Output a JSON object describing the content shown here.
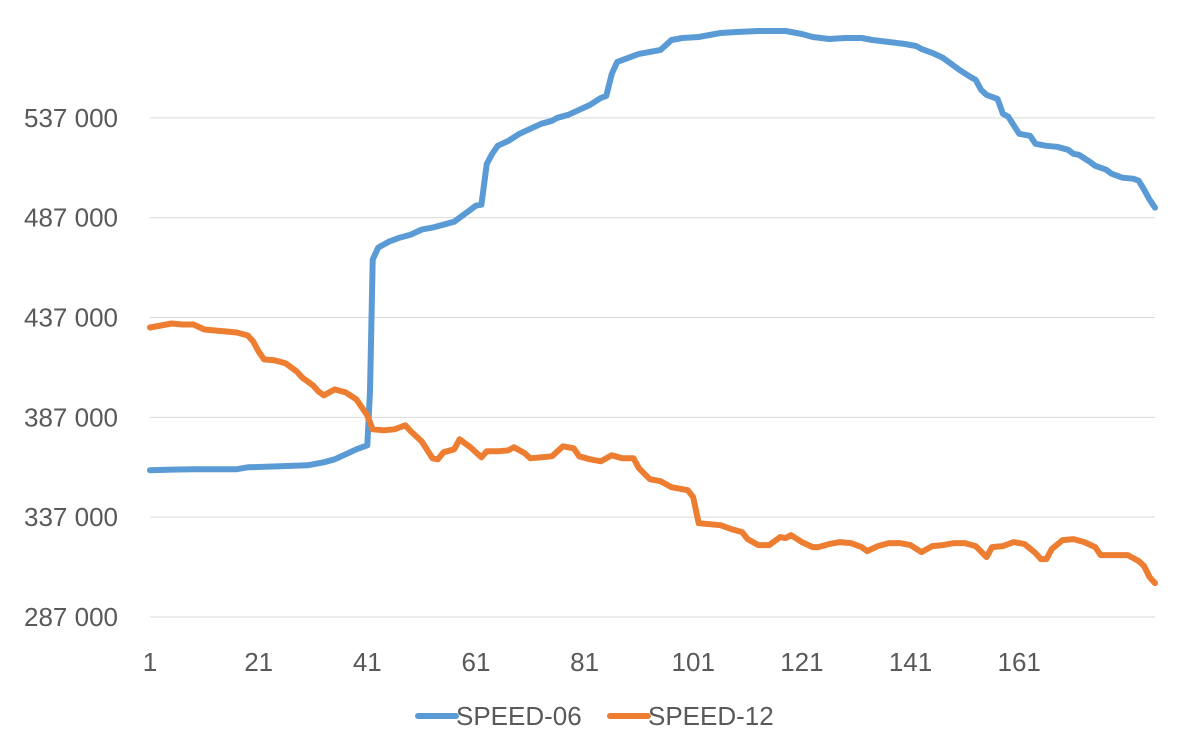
{
  "chart_data": {
    "type": "line",
    "title": "",
    "xlabel": "",
    "ylabel": "",
    "xlim": [
      1,
      180
    ],
    "ylim": [
      287000,
      587000
    ],
    "y_ticks": [
      {
        "value": 287000,
        "label": "287 000"
      },
      {
        "value": 337000,
        "label": "337 000"
      },
      {
        "value": 387000,
        "label": "387 000"
      },
      {
        "value": 437000,
        "label": "437 000"
      },
      {
        "value": 487000,
        "label": "487 000"
      },
      {
        "value": 537000,
        "label": "537 000"
      }
    ],
    "x_ticks": [
      {
        "value": 1,
        "label": "1"
      },
      {
        "value": 21,
        "label": "21"
      },
      {
        "value": 41,
        "label": "41"
      },
      {
        "value": 61,
        "label": "61"
      },
      {
        "value": 81,
        "label": "81"
      },
      {
        "value": 101,
        "label": "101"
      },
      {
        "value": 121,
        "label": "121"
      },
      {
        "value": 141,
        "label": "141"
      },
      {
        "value": 161,
        "label": "161"
      }
    ],
    "grid": true,
    "legend": "bottom",
    "series": [
      {
        "name": "SPEED-06",
        "color": "#5b9bd5",
        "points": [
          [
            1,
            360500
          ],
          [
            5,
            360800
          ],
          [
            9,
            361000
          ],
          [
            13,
            361000
          ],
          [
            17,
            361000
          ],
          [
            19,
            362000
          ],
          [
            25,
            362500
          ],
          [
            30,
            363000
          ],
          [
            33,
            364500
          ],
          [
            35,
            366000
          ],
          [
            37,
            368500
          ],
          [
            39,
            371000
          ],
          [
            41,
            373000
          ],
          [
            41.5,
            400000
          ],
          [
            42,
            466000
          ],
          [
            43,
            472000
          ],
          [
            45,
            475000
          ],
          [
            47,
            477000
          ],
          [
            49,
            478500
          ],
          [
            51,
            481000
          ],
          [
            53,
            482000
          ],
          [
            55,
            483500
          ],
          [
            57,
            485000
          ],
          [
            59,
            489000
          ],
          [
            61,
            493000
          ],
          [
            62,
            493500
          ],
          [
            63,
            514000
          ],
          [
            64,
            519000
          ],
          [
            65,
            523000
          ],
          [
            67,
            525500
          ],
          [
            69,
            529000
          ],
          [
            71,
            531500
          ],
          [
            73,
            534000
          ],
          [
            75,
            535500
          ],
          [
            76,
            537000
          ],
          [
            78,
            538500
          ],
          [
            80,
            541000
          ],
          [
            82,
            543500
          ],
          [
            84,
            547000
          ],
          [
            85,
            548000
          ],
          [
            86,
            559000
          ],
          [
            87,
            565000
          ],
          [
            89,
            567000
          ],
          [
            91,
            569000
          ],
          [
            93,
            570000
          ],
          [
            95,
            571000
          ],
          [
            97,
            576000
          ],
          [
            99,
            577000
          ],
          [
            102,
            577500
          ],
          [
            104,
            578500
          ],
          [
            106,
            579500
          ],
          [
            109,
            580000
          ],
          [
            113,
            580500
          ],
          [
            118,
            580500
          ],
          [
            121,
            579000
          ],
          [
            123,
            577500
          ],
          [
            126,
            576500
          ],
          [
            129,
            577000
          ],
          [
            132,
            577000
          ],
          [
            134,
            576000
          ],
          [
            137,
            575000
          ],
          [
            140,
            574000
          ],
          [
            142,
            573000
          ],
          [
            143,
            571500
          ],
          [
            145,
            569500
          ],
          [
            147,
            567000
          ],
          [
            148,
            565000
          ],
          [
            150,
            561000
          ],
          [
            152,
            557500
          ],
          [
            153,
            556000
          ],
          [
            154,
            551000
          ],
          [
            155,
            548500
          ],
          [
            157,
            546500
          ],
          [
            158,
            539000
          ],
          [
            159,
            537500
          ],
          [
            161,
            529000
          ],
          [
            163,
            528000
          ],
          [
            164,
            524000
          ],
          [
            166,
            523000
          ],
          [
            168,
            522500
          ],
          [
            170,
            521000
          ],
          [
            171,
            519000
          ],
          [
            172,
            518500
          ],
          [
            174,
            515000
          ],
          [
            175,
            513000
          ],
          [
            177,
            511000
          ],
          [
            178,
            509000
          ],
          [
            180,
            507000
          ],
          [
            182,
            506500
          ],
          [
            183,
            505500
          ],
          [
            184,
            501000
          ],
          [
            185,
            496000
          ],
          [
            186,
            492000
          ]
        ]
      },
      {
        "name": "SPEED-12",
        "color": "#ed7d31",
        "points": [
          [
            1,
            432000
          ],
          [
            3,
            433000
          ],
          [
            5,
            434000
          ],
          [
            7,
            433500
          ],
          [
            9,
            433500
          ],
          [
            11,
            431000
          ],
          [
            13,
            430500
          ],
          [
            15,
            430000
          ],
          [
            17,
            429500
          ],
          [
            19,
            428000
          ],
          [
            20,
            425000
          ],
          [
            21,
            420000
          ],
          [
            22,
            416000
          ],
          [
            24,
            415500
          ],
          [
            26,
            414000
          ],
          [
            28,
            410000
          ],
          [
            29,
            407000
          ],
          [
            31,
            403000
          ],
          [
            32,
            400000
          ],
          [
            33,
            398000
          ],
          [
            35,
            401000
          ],
          [
            37,
            399500
          ],
          [
            39,
            396000
          ],
          [
            41,
            388000
          ],
          [
            42,
            381000
          ],
          [
            44,
            380500
          ],
          [
            46,
            381000
          ],
          [
            48,
            383000
          ],
          [
            49,
            380000
          ],
          [
            51,
            375000
          ],
          [
            53,
            366500
          ],
          [
            54,
            366000
          ],
          [
            55,
            369500
          ],
          [
            57,
            371000
          ],
          [
            58,
            376000
          ],
          [
            60,
            372000
          ],
          [
            61,
            369500
          ],
          [
            62,
            367000
          ],
          [
            63,
            370000
          ],
          [
            65,
            370000
          ],
          [
            67,
            370500
          ],
          [
            68,
            372000
          ],
          [
            70,
            369000
          ],
          [
            71,
            366500
          ],
          [
            73,
            367000
          ],
          [
            75,
            367500
          ],
          [
            77,
            372500
          ],
          [
            79,
            371500
          ],
          [
            80,
            367500
          ],
          [
            82,
            366000
          ],
          [
            84,
            365000
          ],
          [
            86,
            368000
          ],
          [
            88,
            366500
          ],
          [
            90,
            366500
          ],
          [
            91,
            361500
          ],
          [
            93,
            356000
          ],
          [
            95,
            355000
          ],
          [
            97,
            352000
          ],
          [
            99,
            351000
          ],
          [
            100,
            350500
          ],
          [
            101,
            347000
          ],
          [
            102,
            334000
          ],
          [
            104,
            333500
          ],
          [
            106,
            333000
          ],
          [
            108,
            331000
          ],
          [
            110,
            329500
          ],
          [
            111,
            326000
          ],
          [
            113,
            323000
          ],
          [
            115,
            323000
          ],
          [
            117,
            327000
          ],
          [
            118,
            326500
          ],
          [
            119,
            328000
          ],
          [
            121,
            324500
          ],
          [
            123,
            322000
          ],
          [
            124,
            322000
          ],
          [
            126,
            323500
          ],
          [
            128,
            324500
          ],
          [
            130,
            324000
          ],
          [
            132,
            322000
          ],
          [
            133,
            320000
          ],
          [
            135,
            322500
          ],
          [
            137,
            324000
          ],
          [
            139,
            324000
          ],
          [
            141,
            323000
          ],
          [
            143,
            319500
          ],
          [
            145,
            322500
          ],
          [
            147,
            323000
          ],
          [
            149,
            324000
          ],
          [
            151,
            324000
          ],
          [
            153,
            322500
          ],
          [
            155,
            317000
          ],
          [
            156,
            322000
          ],
          [
            158,
            322500
          ],
          [
            160,
            324500
          ],
          [
            162,
            323500
          ],
          [
            164,
            319000
          ],
          [
            165,
            316000
          ],
          [
            166,
            316000
          ],
          [
            167,
            321000
          ],
          [
            169,
            325500
          ],
          [
            171,
            326000
          ],
          [
            173,
            324500
          ],
          [
            175,
            322000
          ],
          [
            176,
            318000
          ],
          [
            178,
            318000
          ],
          [
            181,
            318000
          ],
          [
            182,
            316500
          ],
          [
            183,
            315000
          ],
          [
            184,
            312500
          ],
          [
            185,
            307000
          ],
          [
            186,
            304000
          ]
        ]
      }
    ]
  }
}
